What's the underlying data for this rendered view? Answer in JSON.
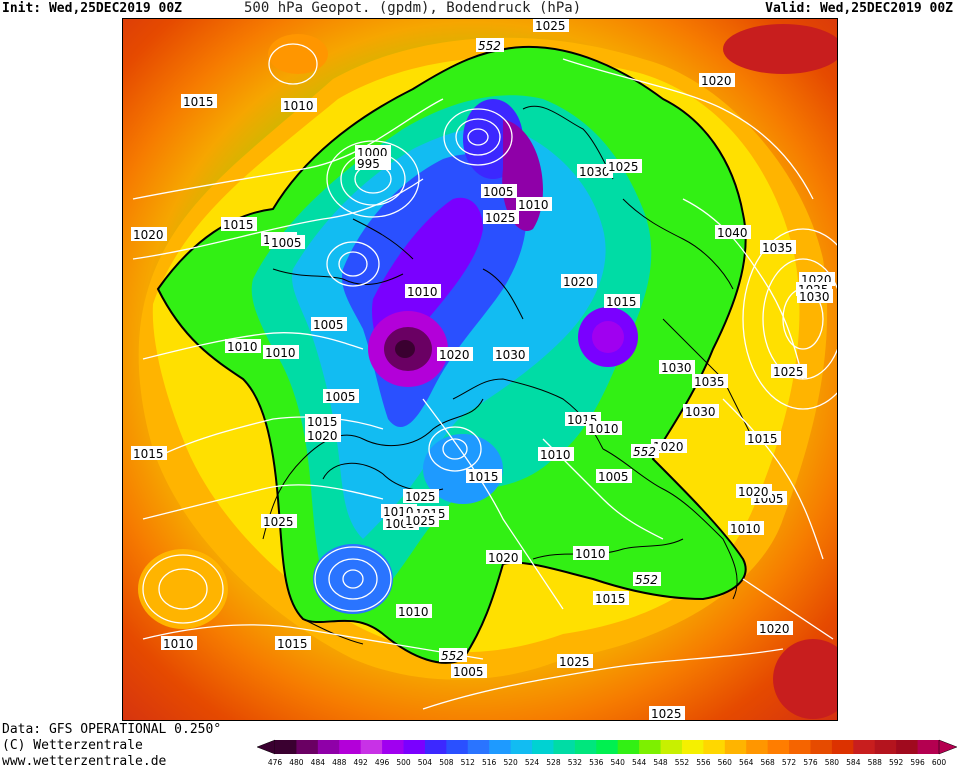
{
  "header": {
    "init": "Init: Wed,25DEC2019 00Z",
    "title": "500 hPa Geopot. (gpdm), Bodendruck (hPa)",
    "valid": "Valid: Wed,25DEC2019 00Z"
  },
  "footer": {
    "data_line": "Data: GFS OPERATIONAL 0.250°",
    "copyright": "(C) Wetterzentrale",
    "url": "www.wetterzentrale.de"
  },
  "colors": {
    "scale": [
      "#3a0030",
      "#6a0063",
      "#8f00a8",
      "#b300d9",
      "#c832e6",
      "#a000f0",
      "#7a00ff",
      "#3c28ff",
      "#2a50ff",
      "#2a74ff",
      "#1e9aff",
      "#12bcf2",
      "#00d2d2",
      "#00dca5",
      "#00e67d",
      "#00f050",
      "#32f014",
      "#7df000",
      "#c8f000",
      "#f5f000",
      "#ffd700",
      "#ffb400",
      "#ff9600",
      "#ff7d00",
      "#f56400",
      "#e64b00",
      "#dc3200",
      "#c81e1e",
      "#b4141e",
      "#a00a1e",
      "#b40050"
    ],
    "isobar": "#ffffff",
    "coast": "#000000",
    "contour_552": "#000000"
  },
  "colorbar": {
    "ticks": [
      "476",
      "480",
      "484",
      "488",
      "492",
      "496",
      "500",
      "504",
      "508",
      "512",
      "516",
      "520",
      "524",
      "528",
      "532",
      "536",
      "540",
      "544",
      "548",
      "552",
      "556",
      "560",
      "564",
      "568",
      "572",
      "576",
      "580",
      "584",
      "588",
      "592",
      "596",
      "600"
    ]
  },
  "map": {
    "highlight_contour_labels": [
      "552",
      "552",
      "552",
      "552"
    ],
    "isobar_labels": [
      "1025",
      "1020",
      "1015",
      "1010",
      "1015",
      "1010",
      "1020",
      "1015",
      "1005",
      "1000",
      "995",
      "1005",
      "1010",
      "1025",
      "1030",
      "1025",
      "1040",
      "1035",
      "1020",
      "1025",
      "1030",
      "1020",
      "1015",
      "1030",
      "1010",
      "1005",
      "1010",
      "1010",
      "1020",
      "1030",
      "1035",
      "1005",
      "1025",
      "1015",
      "1030",
      "1020",
      "1015",
      "1020",
      "1015",
      "1010",
      "1005",
      "1010",
      "1015",
      "1025",
      "1015",
      "1010",
      "1005",
      "1005",
      "1020",
      "1010",
      "1020",
      "1025",
      "1010",
      "1015",
      "1010",
      "1020",
      "1025",
      "1005",
      "1015",
      "1010",
      "1025",
      "1025"
    ]
  }
}
